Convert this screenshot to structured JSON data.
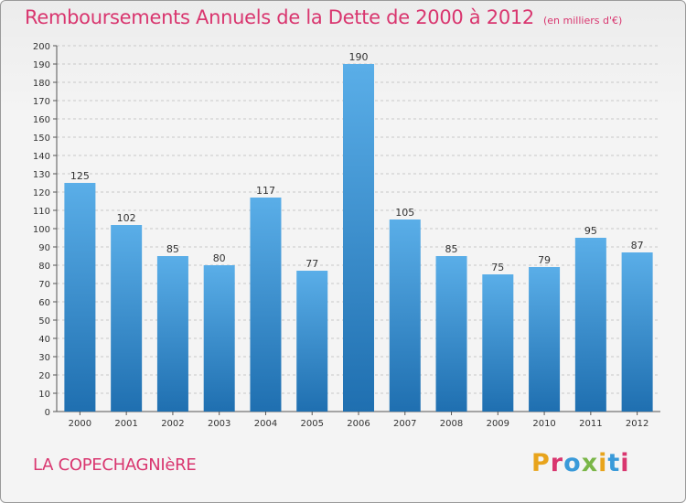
{
  "header": {
    "title": "Remboursements Annuels de la Dette de 2000 à 2012",
    "unit": "(en milliers d'€)"
  },
  "footer": {
    "commune": "LA COPECHAGNIèRE",
    "logo": "Proxiti"
  },
  "logo_colors": [
    "#e8a41c",
    "#d9366f",
    "#3a9ad9",
    "#7ab648",
    "#e8a41c",
    "#3a9ad9",
    "#d9366f"
  ],
  "colors": {
    "title": "#d9366f",
    "bar_top": "#5aaee8",
    "bar_bottom": "#1f6fb0",
    "grid": "#c8c8c8",
    "axis": "#555555"
  },
  "chart_data": {
    "type": "bar",
    "title": "Remboursements Annuels de la Dette de 2000 à 2012",
    "subtitle": "(en milliers d'€)",
    "categories": [
      "2000",
      "2001",
      "2002",
      "2003",
      "2004",
      "2005",
      "2006",
      "2007",
      "2008",
      "2009",
      "2010",
      "2011",
      "2012"
    ],
    "values": [
      125,
      102,
      85,
      80,
      117,
      77,
      190,
      105,
      85,
      75,
      79,
      95,
      87
    ],
    "ylim": [
      0,
      200
    ],
    "ytick_step": 10,
    "grid": true,
    "data_labels": true
  }
}
